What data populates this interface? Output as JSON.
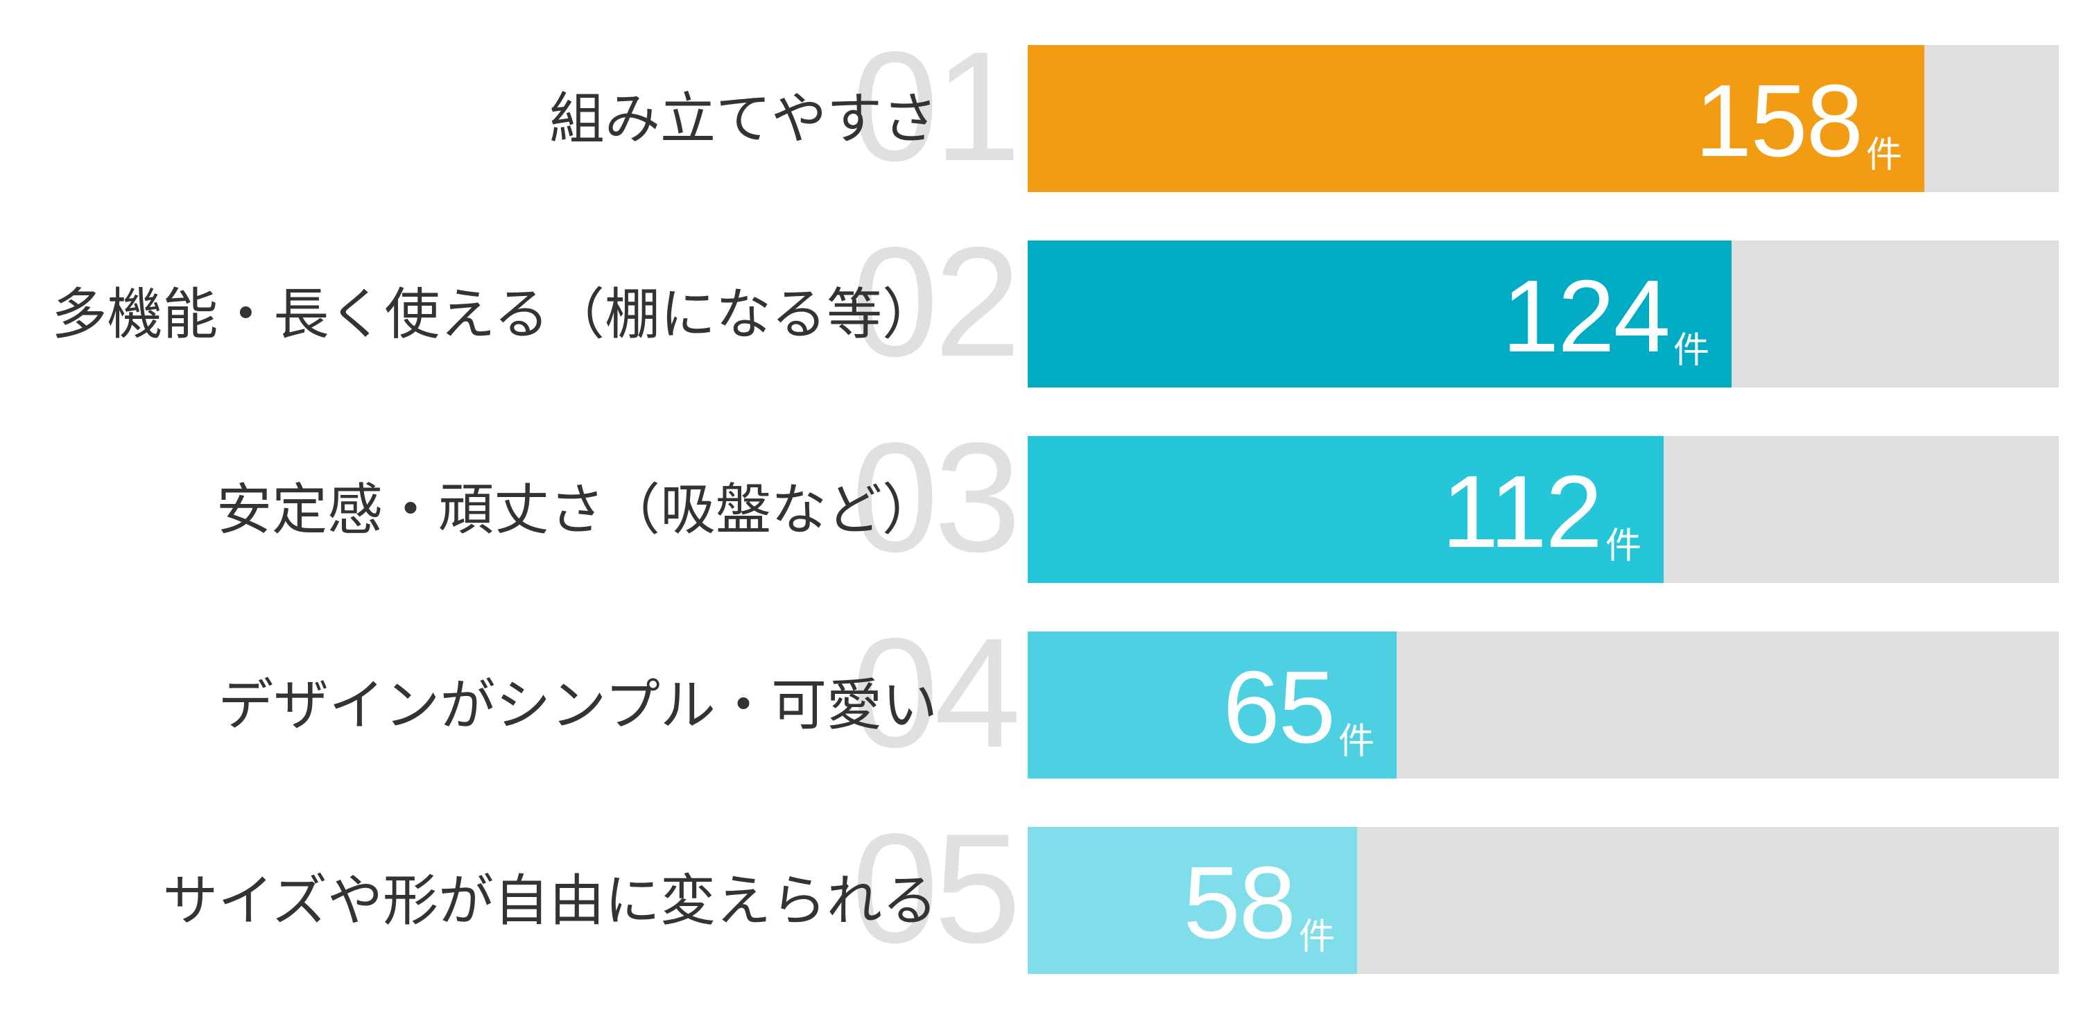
{
  "chart_data": {
    "type": "bar",
    "orientation": "horizontal",
    "title": "",
    "xlabel": "",
    "ylabel": "",
    "unit": "件",
    "grid": false,
    "legend": null,
    "categories": [
      "組み立てやすさ",
      "多機能・長く使える（棚になる等）",
      "安定感・頑丈さ（吸盤など）",
      "デザインがシンプル・可愛い",
      "サイズや形が自由に変えられる"
    ],
    "ranks": [
      "01",
      "02",
      "03",
      "04",
      "05"
    ],
    "values": [
      158,
      124,
      112,
      65,
      58
    ],
    "colors": [
      "#F29C14",
      "#00ACC4",
      "#26C6DA",
      "#4DD0E1",
      "#80DEEA"
    ],
    "track_color": "#DFDFDF"
  },
  "rows": [
    {
      "rank": "01",
      "label": "組み立てやすさ",
      "value": "158",
      "unit": "件",
      "color": "#F29C14"
    },
    {
      "rank": "02",
      "label": "多機能・長く使える（棚になる等）",
      "value": "124",
      "unit": "件",
      "color": "#00ACC4"
    },
    {
      "rank": "03",
      "label": "安定感・頑丈さ（吸盤など）",
      "value": "112",
      "unit": "件",
      "color": "#26C6DA"
    },
    {
      "rank": "04",
      "label": "デザインがシンプル・可愛い",
      "value": "65",
      "unit": "件",
      "color": "#4DD0E1"
    },
    {
      "rank": "05",
      "label": "サイズや形が自由に変えられる",
      "value": "58",
      "unit": "件",
      "color": "#80DEEA"
    }
  ]
}
